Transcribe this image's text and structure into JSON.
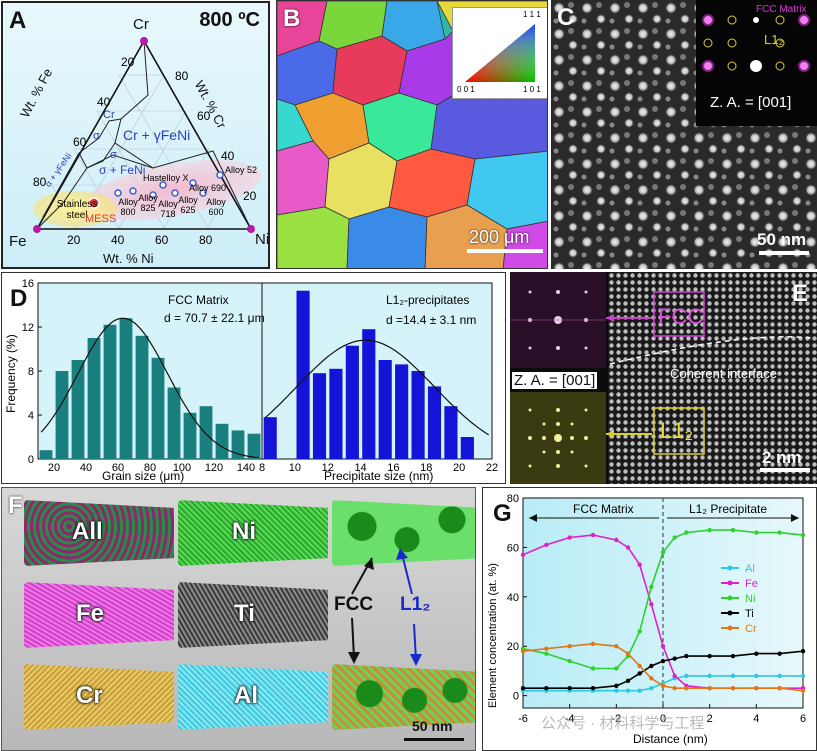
{
  "panelA": {
    "label": "A",
    "temp": "800 ºC",
    "vertices": {
      "cr": "Cr",
      "fe": "Fe",
      "ni": "Ni"
    },
    "axis_fe": "Wt. % Fe",
    "axis_cr": "Wt. % Cr",
    "axis_ni": "Wt. % Ni",
    "left_ticks": [
      "20",
      "40",
      "60",
      "80"
    ],
    "right_ticks": [
      "80",
      "60",
      "40",
      "20"
    ],
    "bottom_ticks": [
      "20",
      "40",
      "60",
      "80"
    ],
    "regions": {
      "cr_small": "Cr",
      "cr_gfeni": "Cr + γFeNi",
      "sigma1": "σ",
      "sigma2": "σ",
      "sigma_feni": "σ + FeNi",
      "alpha_gfeni": "α + γFeNi"
    },
    "alloys": [
      "Hastelloy X",
      "Alloy 52",
      "Alloy 690",
      "Alloy 800",
      "Alloy 825",
      "Alloy 718",
      "Alloy 625",
      "Alloy 600"
    ],
    "stainless": "Stainless steel",
    "mess": "MESS"
  },
  "panelB": {
    "label": "B",
    "scale": "200 μm",
    "ipf": {
      "top": "1 1 1",
      "left": "0 0 1",
      "right": "1 0 1"
    }
  },
  "panelC": {
    "label": "C",
    "fcc_matrix": "FCC Matrix",
    "l12": "L1₂",
    "za": "Z. A. = [001]",
    "scale": "50 nm"
  },
  "panelD": {
    "label": "D",
    "left_title": "FCC Matrix",
    "left_d": "d = 70.7 ± 22.1 μm",
    "right_title": "L1₂-precipitates",
    "right_d": "d =14.4 ± 3.1 nm",
    "ylabel": "Frequency (%)",
    "xlabel_left": "Grain size (μm)",
    "xlabel_right": "Precipitate size (nm)",
    "colors": {
      "grain": "#1a7f7f",
      "precip": "#1414d8"
    }
  },
  "panelE": {
    "label": "E",
    "fcc": "FCC",
    "l12": "L1₂",
    "za": "Z. A. = [001]",
    "interface": "Coherent interface",
    "scale": "2 nm"
  },
  "panelF": {
    "label": "F",
    "maps": [
      "All",
      "Ni",
      "Fe",
      "Ti",
      "Cr",
      "Al"
    ],
    "fcc": "FCC",
    "l12": "L1₂",
    "scale": "50 nm"
  },
  "panelG": {
    "label": "G",
    "region_left": "FCC Matrix",
    "region_right": "L1₂ Precipitate",
    "ylabel": "Element concentration (at. %)",
    "xlabel": "Distance (nm)",
    "legend": [
      {
        "name": "Al",
        "color": "#2ec8e0"
      },
      {
        "name": "Fe",
        "color": "#e020c8"
      },
      {
        "name": "Ni",
        "color": "#30d030"
      },
      {
        "name": "Ti",
        "color": "#000000"
      },
      {
        "name": "Cr",
        "color": "#e07818"
      }
    ]
  },
  "watermark": "公众号 · 材料科学与工程",
  "chart_data": [
    {
      "type": "bar",
      "title": "FCC Matrix",
      "xlabel": "Grain size (μm)",
      "ylabel": "Frequency (%)",
      "x": [
        15,
        25,
        35,
        45,
        55,
        65,
        75,
        85,
        95,
        105,
        115,
        125,
        135,
        145
      ],
      "values": [
        0.8,
        8.0,
        9.0,
        11.0,
        12.2,
        12.8,
        11.2,
        9.2,
        6.5,
        4.2,
        4.8,
        3.2,
        2.6,
        2.3
      ],
      "xlim": [
        10,
        150
      ],
      "ylim": [
        0,
        16
      ],
      "xticks": [
        20,
        40,
        60,
        80,
        100,
        120,
        140
      ],
      "yticks": [
        0,
        4,
        8,
        12,
        16
      ]
    },
    {
      "type": "bar",
      "title": "L1₂-precipitates",
      "xlabel": "Precipitate size (nm)",
      "ylabel": "Frequency (%)",
      "x": [
        8.5,
        10.5,
        11.5,
        12.5,
        13.5,
        14.5,
        15.5,
        16.5,
        17.5,
        18.5,
        19.5,
        20.5
      ],
      "values": [
        3.8,
        15.3,
        7.8,
        8.2,
        10.3,
        11.8,
        9.0,
        8.6,
        8.0,
        6.6,
        4.8,
        2.0
      ],
      "xlim": [
        8,
        22
      ],
      "ylim": [
        0,
        16
      ],
      "xticks": [
        8,
        10,
        12,
        14,
        16,
        18,
        20,
        22
      ]
    },
    {
      "type": "line",
      "xlabel": "Distance (nm)",
      "ylabel": "Element concentration (at. %)",
      "xlim": [
        -6,
        6
      ],
      "ylim": [
        -5,
        80
      ],
      "xticks": [
        -6,
        -4,
        -2,
        0,
        2,
        4,
        6
      ],
      "yticks": [
        0,
        20,
        40,
        60,
        80
      ],
      "x": [
        -6,
        -5,
        -4,
        -3,
        -2,
        -1.5,
        -1,
        -0.5,
        0,
        0.5,
        1,
        2,
        3,
        4,
        5,
        6
      ],
      "series": [
        {
          "name": "Al",
          "values": [
            2,
            2,
            2,
            2,
            2,
            2,
            2,
            3,
            5,
            7,
            8,
            8,
            8,
            8,
            8,
            8
          ]
        },
        {
          "name": "Fe",
          "values": [
            57,
            61,
            64,
            65,
            63,
            60,
            53,
            37,
            20,
            8,
            4,
            3,
            3,
            3,
            3,
            3
          ]
        },
        {
          "name": "Ni",
          "values": [
            19,
            17,
            14,
            11,
            11,
            16,
            26,
            44,
            58,
            64,
            66,
            67,
            67,
            66,
            66,
            65
          ]
        },
        {
          "name": "Ti",
          "values": [
            3,
            3,
            3,
            3,
            4,
            6,
            9,
            12,
            14,
            15,
            16,
            16,
            16,
            17,
            17,
            18
          ]
        },
        {
          "name": "Cr",
          "values": [
            18,
            19,
            20,
            21,
            20,
            17,
            12,
            7,
            4,
            3,
            3,
            3,
            3,
            3,
            3,
            2
          ]
        }
      ]
    }
  ]
}
